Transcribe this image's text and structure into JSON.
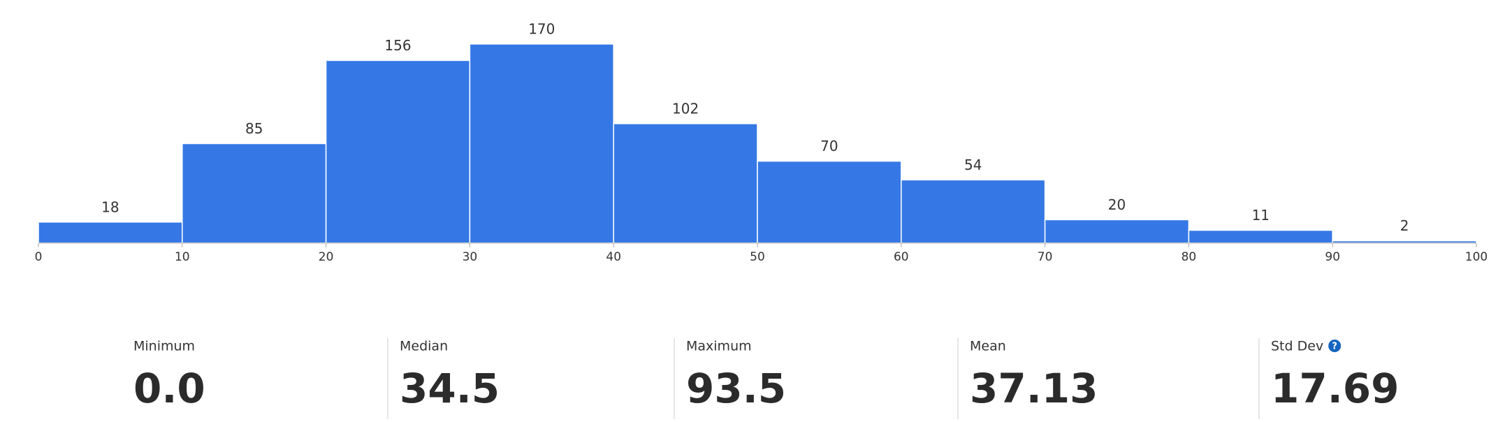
{
  "chart_data": {
    "type": "histogram",
    "bins": [
      0,
      10,
      20,
      30,
      40,
      50,
      60,
      70,
      80,
      90,
      100
    ],
    "values": [
      18,
      85,
      156,
      170,
      102,
      70,
      54,
      20,
      11,
      2
    ],
    "color": "#3578e5",
    "xlim": [
      0,
      100
    ],
    "xticks": [
      0,
      10,
      20,
      30,
      40,
      50,
      60,
      70,
      80,
      90,
      100
    ]
  },
  "stats": [
    {
      "label": "Minimum",
      "value": "0.0"
    },
    {
      "label": "Median",
      "value": "34.5"
    },
    {
      "label": "Maximum",
      "value": "93.5"
    },
    {
      "label": "Mean",
      "value": "37.13"
    },
    {
      "label": "Std Dev",
      "value": "17.69"
    }
  ]
}
